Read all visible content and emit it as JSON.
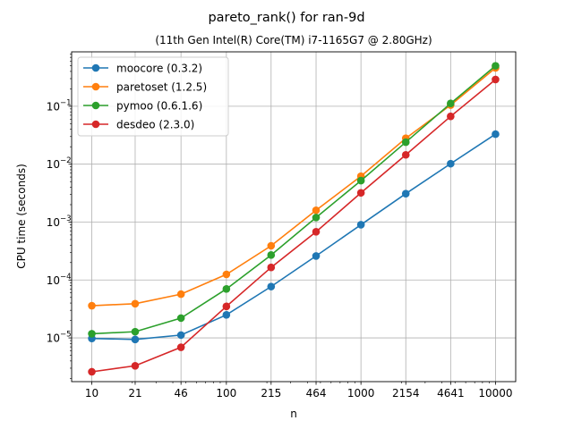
{
  "chart_data": {
    "type": "line",
    "title": "pareto_rank() for ran-9d",
    "subtitle": "(11th Gen Intel(R) Core(TM) i7-1165G7 @ 2.80GHz)",
    "xlabel": "n",
    "ylabel": "CPU time (seconds)",
    "x_scale": "log",
    "y_scale": "log",
    "grid": true,
    "legend_position": "top-left",
    "x": [
      10,
      21,
      46,
      100,
      215,
      464,
      1000,
      2154,
      4641,
      10000
    ],
    "x_tick_labels": [
      "10",
      "21",
      "46",
      "100",
      "215",
      "464",
      "1000",
      "2154",
      "4641",
      "10000"
    ],
    "y_ticks": [
      {
        "value": 1e-05,
        "mantissa": "10",
        "exp": "−5"
      },
      {
        "value": 0.0001,
        "mantissa": "10",
        "exp": "−4"
      },
      {
        "value": 0.001,
        "mantissa": "10",
        "exp": "−3"
      },
      {
        "value": 0.01,
        "mantissa": "10",
        "exp": "−2"
      },
      {
        "value": 0.1,
        "mantissa": "10",
        "exp": "−1"
      }
    ],
    "series": [
      {
        "name": "moocore (0.3.2)",
        "color": "#1f77b4",
        "values": [
          9.8e-06,
          9.4e-06,
          1.12e-05,
          2.5e-05,
          7.7e-05,
          0.00026,
          0.0009,
          0.0031,
          0.0102,
          0.033
        ]
      },
      {
        "name": "paretoset (1.2.5)",
        "color": "#ff7f0e",
        "values": [
          3.6e-05,
          3.9e-05,
          5.7e-05,
          0.000125,
          0.00039,
          0.0016,
          0.0062,
          0.028,
          0.105,
          0.46
        ]
      },
      {
        "name": "pymoo (0.6.1.6)",
        "color": "#2ca02c",
        "values": [
          1.18e-05,
          1.28e-05,
          2.2e-05,
          7e-05,
          0.00027,
          0.0012,
          0.0052,
          0.024,
          0.112,
          0.5
        ]
      },
      {
        "name": "desdeo (2.3.0)",
        "color": "#d62728",
        "values": [
          2.6e-06,
          3.3e-06,
          6.9e-06,
          3.5e-05,
          0.000165,
          0.00068,
          0.0032,
          0.0145,
          0.067,
          0.29
        ]
      }
    ]
  }
}
